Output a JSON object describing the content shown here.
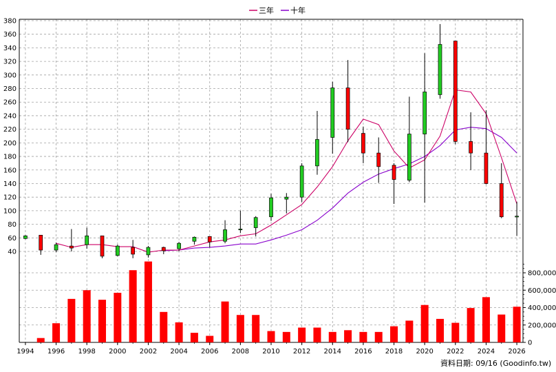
{
  "chart_data": {
    "type": "candlestick",
    "legend": [
      {
        "label": "三年",
        "color": "#cc0066"
      },
      {
        "label": "十年",
        "color": "#8800cc"
      }
    ],
    "price_axis": {
      "ylim": [
        20,
        385
      ],
      "ticks": [
        40,
        60,
        80,
        100,
        120,
        140,
        160,
        180,
        200,
        220,
        240,
        260,
        280,
        300,
        320,
        340,
        360,
        380
      ]
    },
    "volume_axis": {
      "ylim": [
        0,
        900000
      ],
      "ticks": [
        0,
        200000,
        400000,
        600000,
        800000
      ],
      "tick_labels": [
        "0",
        "200,000",
        "400,000",
        "600,000",
        "800,000"
      ]
    },
    "x_axis": {
      "xlim": [
        1993.6,
        2026.4
      ],
      "ticks": [
        1994,
        1996,
        1998,
        2000,
        2002,
        2004,
        2006,
        2008,
        2010,
        2012,
        2014,
        2016,
        2018,
        2020,
        2022,
        2024,
        2026
      ]
    },
    "footer": "資料日期: 09/16  (Goodinfo.tw)",
    "candles": [
      {
        "year": 1994,
        "open": 63,
        "close": 59,
        "high": 64,
        "low": 58
      },
      {
        "year": 1995,
        "open": 42,
        "close": 64,
        "high": 64,
        "low": 35
      },
      {
        "year": 1996,
        "open": 50,
        "close": 42,
        "high": 53,
        "low": 39
      },
      {
        "year": 1997,
        "open": 45,
        "close": 48,
        "high": 73,
        "low": 40
      },
      {
        "year": 1998,
        "open": 63,
        "close": 50,
        "high": 75,
        "low": 44
      },
      {
        "year": 1999,
        "open": 33,
        "close": 63,
        "high": 63,
        "low": 30
      },
      {
        "year": 2000,
        "open": 48,
        "close": 34,
        "high": 50,
        "low": 33
      },
      {
        "year": 2001,
        "open": 36,
        "close": 46,
        "high": 57,
        "low": 30
      },
      {
        "year": 2002,
        "open": 46,
        "close": 35,
        "high": 48,
        "low": 31
      },
      {
        "year": 2003,
        "open": 41,
        "close": 46,
        "high": 47,
        "low": 36
      },
      {
        "year": 2004,
        "open": 52,
        "close": 44,
        "high": 54,
        "low": 40
      },
      {
        "year": 2005,
        "open": 61,
        "close": 55,
        "high": 62,
        "low": 50
      },
      {
        "year": 2006,
        "open": 54,
        "close": 62,
        "high": 62,
        "low": 46
      },
      {
        "year": 2007,
        "open": 72,
        "close": 55,
        "high": 86,
        "low": 52
      },
      {
        "year": 2008,
        "open": 73,
        "close": 72,
        "high": 100,
        "low": 67
      },
      {
        "year": 2009,
        "open": 90,
        "close": 75,
        "high": 92,
        "low": 62
      },
      {
        "year": 2010,
        "open": 119,
        "close": 91,
        "high": 125,
        "low": 85
      },
      {
        "year": 2011,
        "open": 120,
        "close": 117,
        "high": 126,
        "low": 96
      },
      {
        "year": 2012,
        "open": 166,
        "close": 120,
        "high": 170,
        "low": 113
      },
      {
        "year": 2013,
        "open": 205,
        "close": 166,
        "high": 247,
        "low": 153
      },
      {
        "year": 2014,
        "open": 281,
        "close": 208,
        "high": 290,
        "low": 184
      },
      {
        "year": 2015,
        "open": 220,
        "close": 281,
        "high": 322,
        "low": 201
      },
      {
        "year": 2016,
        "open": 185,
        "close": 214,
        "high": 224,
        "low": 170
      },
      {
        "year": 2017,
        "open": 165,
        "close": 185,
        "high": 208,
        "low": 141
      },
      {
        "year": 2018,
        "open": 146,
        "close": 167,
        "high": 170,
        "low": 110
      },
      {
        "year": 2019,
        "open": 213,
        "close": 145,
        "high": 268,
        "low": 142
      },
      {
        "year": 2020,
        "open": 275,
        "close": 213,
        "high": 332,
        "low": 112
      },
      {
        "year": 2021,
        "open": 345,
        "close": 271,
        "high": 375,
        "low": 265
      },
      {
        "year": 2022,
        "open": 202,
        "close": 350,
        "high": 350,
        "low": 198
      },
      {
        "year": 2023,
        "open": 185,
        "close": 202,
        "high": 245,
        "low": 160
      },
      {
        "year": 2024,
        "open": 140,
        "close": 185,
        "high": 248,
        "low": 139
      },
      {
        "year": 2025,
        "open": 91,
        "close": 140,
        "high": 170,
        "low": 89
      },
      {
        "year": 2026,
        "open": 92,
        "close": 91,
        "high": 113,
        "low": 63
      }
    ],
    "volume": [
      {
        "year": 1994,
        "value": 0
      },
      {
        "year": 1995,
        "value": 50000
      },
      {
        "year": 1996,
        "value": 220000
      },
      {
        "year": 1997,
        "value": 500000
      },
      {
        "year": 1998,
        "value": 600000
      },
      {
        "year": 1999,
        "value": 490000
      },
      {
        "year": 2000,
        "value": 570000
      },
      {
        "year": 2001,
        "value": 830000
      },
      {
        "year": 2002,
        "value": 930000
      },
      {
        "year": 2003,
        "value": 350000
      },
      {
        "year": 2004,
        "value": 230000
      },
      {
        "year": 2005,
        "value": 110000
      },
      {
        "year": 2006,
        "value": 75000
      },
      {
        "year": 2007,
        "value": 470000
      },
      {
        "year": 2008,
        "value": 315000
      },
      {
        "year": 2009,
        "value": 315000
      },
      {
        "year": 2010,
        "value": 130000
      },
      {
        "year": 2011,
        "value": 120000
      },
      {
        "year": 2012,
        "value": 170000
      },
      {
        "year": 2013,
        "value": 170000
      },
      {
        "year": 2014,
        "value": 120000
      },
      {
        "year": 2015,
        "value": 140000
      },
      {
        "year": 2016,
        "value": 120000
      },
      {
        "year": 2017,
        "value": 120000
      },
      {
        "year": 2018,
        "value": 185000
      },
      {
        "year": 2019,
        "value": 250000
      },
      {
        "year": 2020,
        "value": 430000
      },
      {
        "year": 2021,
        "value": 270000
      },
      {
        "year": 2022,
        "value": 225000
      },
      {
        "year": 2023,
        "value": 395000
      },
      {
        "year": 2024,
        "value": 520000
      },
      {
        "year": 2025,
        "value": 320000
      },
      {
        "year": 2026,
        "value": 410000
      }
    ],
    "ma3": [
      {
        "year": 1996,
        "value": 52
      },
      {
        "year": 1997,
        "value": 46
      },
      {
        "year": 1998,
        "value": 50
      },
      {
        "year": 1999,
        "value": 50
      },
      {
        "year": 2000,
        "value": 47
      },
      {
        "year": 2001,
        "value": 47
      },
      {
        "year": 2002,
        "value": 39
      },
      {
        "year": 2003,
        "value": 42
      },
      {
        "year": 2004,
        "value": 42
      },
      {
        "year": 2005,
        "value": 48
      },
      {
        "year": 2006,
        "value": 54
      },
      {
        "year": 2007,
        "value": 57
      },
      {
        "year": 2008,
        "value": 63
      },
      {
        "year": 2009,
        "value": 66
      },
      {
        "year": 2010,
        "value": 79
      },
      {
        "year": 2011,
        "value": 94
      },
      {
        "year": 2012,
        "value": 109
      },
      {
        "year": 2013,
        "value": 135
      },
      {
        "year": 2014,
        "value": 165
      },
      {
        "year": 2015,
        "value": 203
      },
      {
        "year": 2016,
        "value": 235
      },
      {
        "year": 2017,
        "value": 227
      },
      {
        "year": 2018,
        "value": 188
      },
      {
        "year": 2019,
        "value": 163
      },
      {
        "year": 2020,
        "value": 175
      },
      {
        "year": 2021,
        "value": 210
      },
      {
        "year": 2022,
        "value": 278
      },
      {
        "year": 2023,
        "value": 275
      },
      {
        "year": 2024,
        "value": 243
      },
      {
        "year": 2025,
        "value": 178
      },
      {
        "year": 2026,
        "value": 110
      }
    ],
    "ma10": [
      {
        "year": 2003,
        "value": 41
      },
      {
        "year": 2004,
        "value": 42
      },
      {
        "year": 2005,
        "value": 45
      },
      {
        "year": 2006,
        "value": 46
      },
      {
        "year": 2007,
        "value": 48
      },
      {
        "year": 2008,
        "value": 51
      },
      {
        "year": 2009,
        "value": 51
      },
      {
        "year": 2010,
        "value": 57
      },
      {
        "year": 2011,
        "value": 64
      },
      {
        "year": 2012,
        "value": 72
      },
      {
        "year": 2013,
        "value": 86
      },
      {
        "year": 2014,
        "value": 104
      },
      {
        "year": 2015,
        "value": 126
      },
      {
        "year": 2016,
        "value": 142
      },
      {
        "year": 2017,
        "value": 154
      },
      {
        "year": 2018,
        "value": 162
      },
      {
        "year": 2019,
        "value": 169
      },
      {
        "year": 2020,
        "value": 180
      },
      {
        "year": 2021,
        "value": 196
      },
      {
        "year": 2022,
        "value": 219
      },
      {
        "year": 2023,
        "value": 223
      },
      {
        "year": 2024,
        "value": 221
      },
      {
        "year": 2025,
        "value": 208
      },
      {
        "year": 2026,
        "value": 185
      }
    ],
    "colors": {
      "up": "#ff0000",
      "down": "#22cc22",
      "volume": "#ff0000",
      "grid": "#a0a0a0"
    }
  }
}
